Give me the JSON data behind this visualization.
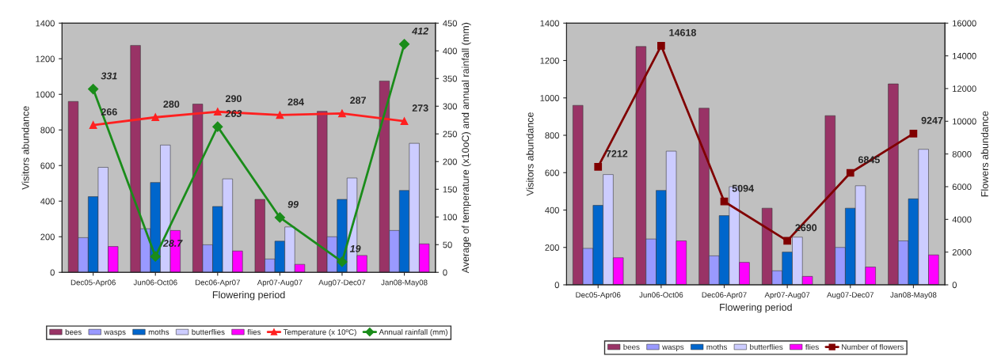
{
  "chart_data": [
    {
      "type": "bar",
      "categories": [
        "Dec05-Apr06",
        "Jun06-Oct06",
        "Dec06-Apr07",
        "Apr07-Aug07",
        "Aug07-Dec07",
        "Jan08-May08"
      ],
      "xlabel": "Flowering period",
      "ylabel": "Visitors abundance",
      "y2label": "Average of temperature (x10oC) and annual rainfall (mm)",
      "ylim": [
        0,
        1400
      ],
      "yticks": [
        0,
        200,
        400,
        600,
        800,
        1000,
        1200,
        1400
      ],
      "y2lim": [
        0,
        450
      ],
      "y2ticks": [
        0,
        50,
        100,
        150,
        200,
        250,
        300,
        350,
        400,
        450
      ],
      "grid": false,
      "legend": "bottom",
      "series": [
        {
          "name": "bees",
          "color": "#993366",
          "values": [
            960,
            1275,
            945,
            410,
            905,
            1075
          ]
        },
        {
          "name": "wasps",
          "color": "#9999ff",
          "values": [
            195,
            245,
            155,
            75,
            200,
            235
          ]
        },
        {
          "name": "moths",
          "color": "#0066cc",
          "values": [
            425,
            505,
            370,
            175,
            410,
            460
          ]
        },
        {
          "name": "butterflies",
          "color": "#ccccff",
          "values": [
            590,
            715,
            525,
            255,
            530,
            725
          ]
        },
        {
          "name": "flies",
          "color": "#ff00ff",
          "values": [
            145,
            235,
            120,
            45,
            95,
            160
          ]
        },
        {
          "name": "Temperature (x 10ºC)",
          "type": "line",
          "axis": "y2",
          "marker": "triangle",
          "color": "#ff2020",
          "data_labels": true,
          "values": [
            266,
            280,
            290,
            284,
            287,
            273
          ]
        },
        {
          "name": "Annual rainfall (mm)",
          "type": "line",
          "axis": "y2",
          "marker": "diamond",
          "color": "#1a8c1a",
          "data_labels": true,
          "values": [
            331,
            28.7,
            263,
            99,
            19,
            412
          ]
        }
      ]
    },
    {
      "type": "bar",
      "categories": [
        "Dec05-Apr06",
        "Jun06-Oct06",
        "Dec06-Apr07",
        "Apr07-Aug07",
        "Aug07-Dec07",
        "Jan08-May08"
      ],
      "xlabel": "Flowering period",
      "ylabel": "Visitors abundance",
      "y2label": "Flowers abundance",
      "ylim": [
        0,
        1400
      ],
      "yticks": [
        0,
        200,
        400,
        600,
        800,
        1000,
        1200,
        1400
      ],
      "y2lim": [
        0,
        16000
      ],
      "y2ticks": [
        0,
        2000,
        4000,
        6000,
        8000,
        10000,
        12000,
        14000,
        16000
      ],
      "grid": false,
      "legend": "bottom",
      "series": [
        {
          "name": "bees",
          "color": "#993366",
          "values": [
            960,
            1275,
            945,
            410,
            905,
            1075
          ]
        },
        {
          "name": "wasps",
          "color": "#9999ff",
          "values": [
            195,
            245,
            155,
            75,
            200,
            235
          ]
        },
        {
          "name": "moths",
          "color": "#0066cc",
          "values": [
            425,
            505,
            370,
            175,
            410,
            460
          ]
        },
        {
          "name": "butterflies",
          "color": "#ccccff",
          "values": [
            590,
            715,
            525,
            255,
            530,
            725
          ]
        },
        {
          "name": "flies",
          "color": "#ff00ff",
          "values": [
            145,
            235,
            120,
            45,
            95,
            160
          ]
        },
        {
          "name": "Number of flowers",
          "type": "line",
          "axis": "y2",
          "marker": "square",
          "color": "#800000",
          "data_labels": true,
          "values": [
            7212,
            14618,
            5094,
            2690,
            6845,
            9247
          ]
        }
      ]
    }
  ]
}
